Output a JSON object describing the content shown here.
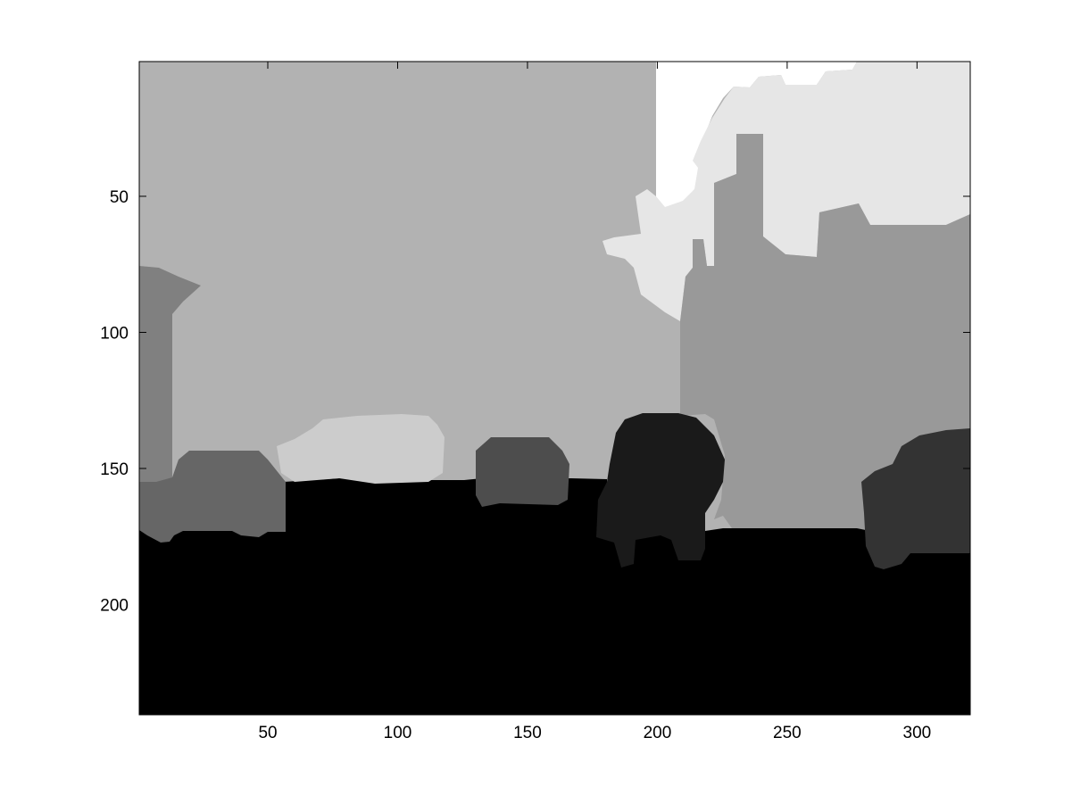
{
  "figure": {
    "image_description": "Grayscale segmentation label map of a street scene",
    "colors": {
      "background": "#ffffff",
      "sky_left": "#b2b2b2",
      "sky_cloud_white": "#ffffff",
      "sky_cloud_light": "#e6e6e6",
      "buildings": "#999999",
      "pole": "#808080",
      "car_white": "#cccccc",
      "car_left": "#666666",
      "car_middle": "#4d4d4d",
      "tree": "#1a1a1a",
      "car_right": "#333333",
      "road": "#000000",
      "axes": "#000000"
    },
    "x_axis": {
      "range": [
        0.5,
        320.5
      ],
      "ticks": [
        50,
        100,
        150,
        200,
        250,
        300
      ]
    },
    "y_axis": {
      "range": [
        0.5,
        240.5
      ],
      "direction": "reverse",
      "ticks": [
        50,
        100,
        150,
        200
      ]
    }
  }
}
